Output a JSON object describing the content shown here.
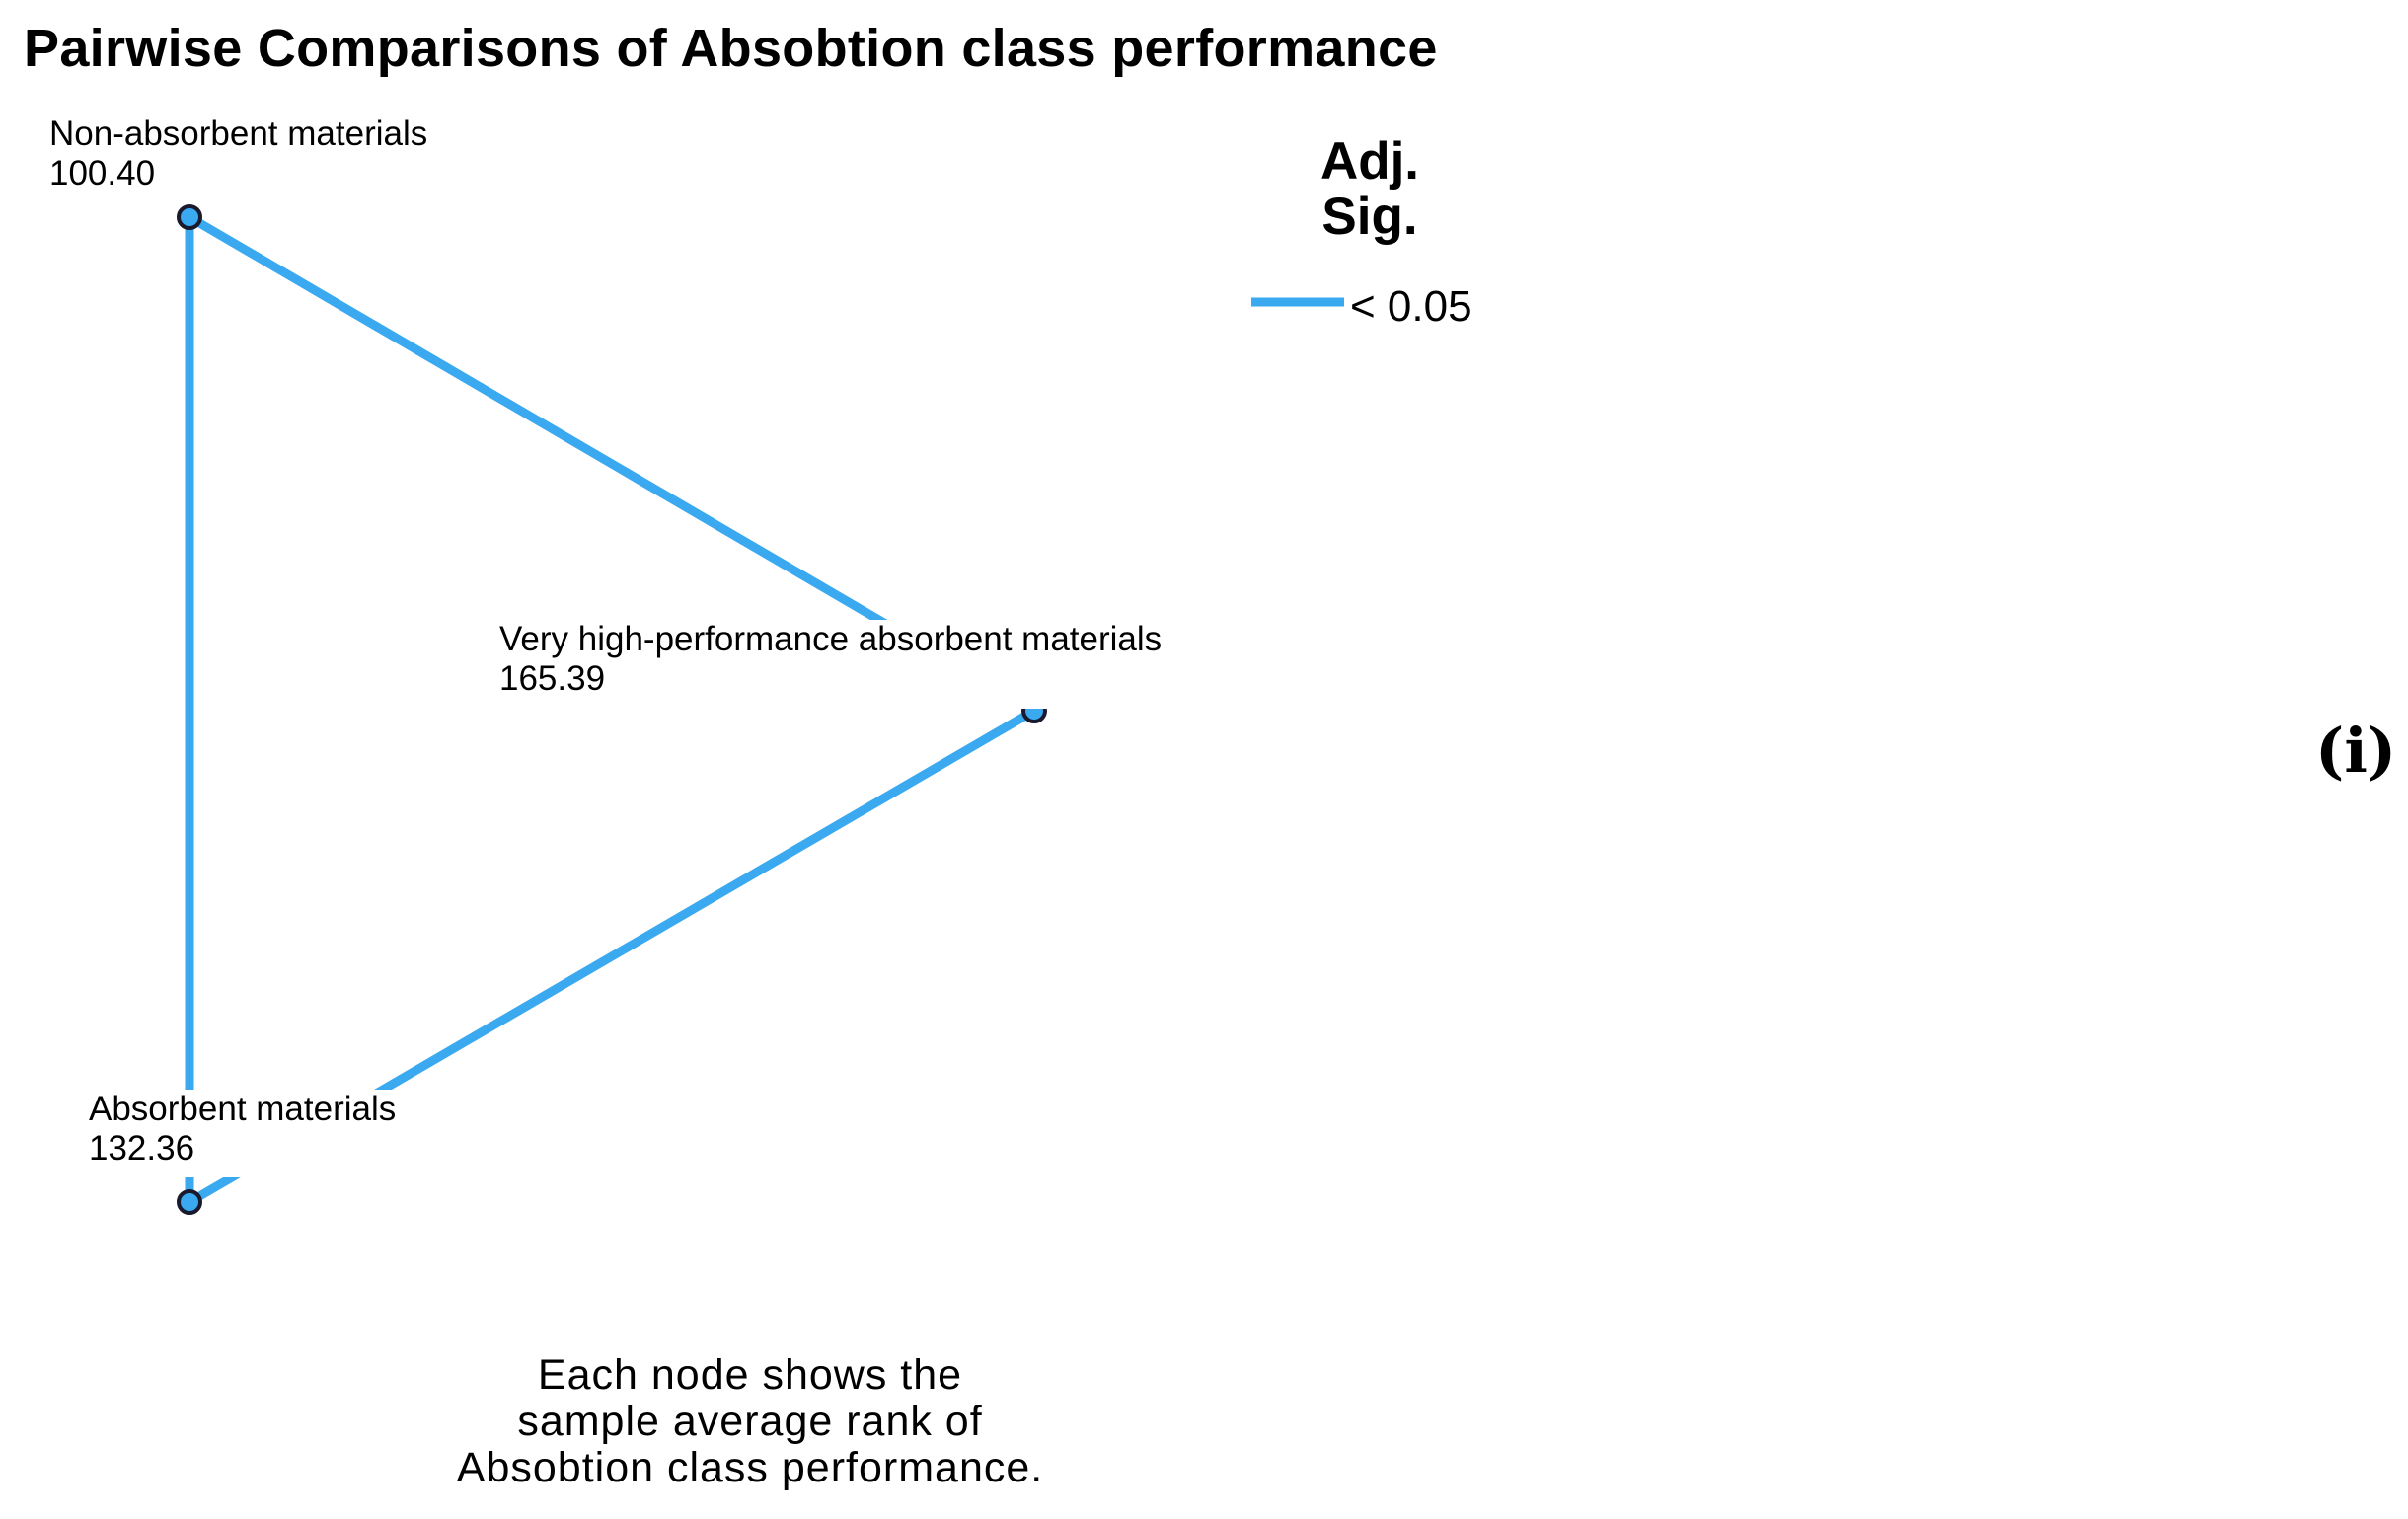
{
  "title": "Pairwise Comparisons of Absobtion class performance",
  "nodes": [
    {
      "label": "Non-absorbent materials",
      "rank": "100.40"
    },
    {
      "label": "Very high-performance absorbent materials",
      "rank": "165.39"
    },
    {
      "label": "Absorbent materials",
      "rank": "132.36"
    }
  ],
  "edges": [
    {
      "from": "Non-absorbent materials",
      "to": "Very high-performance absorbent materials",
      "significance": "< 0.05"
    },
    {
      "from": "Non-absorbent materials",
      "to": "Absorbent materials",
      "significance": "< 0.05"
    },
    {
      "from": "Absorbent materials",
      "to": "Very high-performance absorbent materials",
      "significance": "< 0.05"
    }
  ],
  "legend": {
    "title_line1": "Adj.",
    "title_line2": "Sig.",
    "entry_label": "< 0.05"
  },
  "footnote": {
    "line1": "Each node shows the",
    "line2": "sample average rank of",
    "line3": "Absobtion class performance."
  },
  "panel_label": "(i)",
  "colors": {
    "edge": "#3aa9f0",
    "node_fill": "#3aa9f0",
    "node_stroke": "#1a1a2e"
  }
}
